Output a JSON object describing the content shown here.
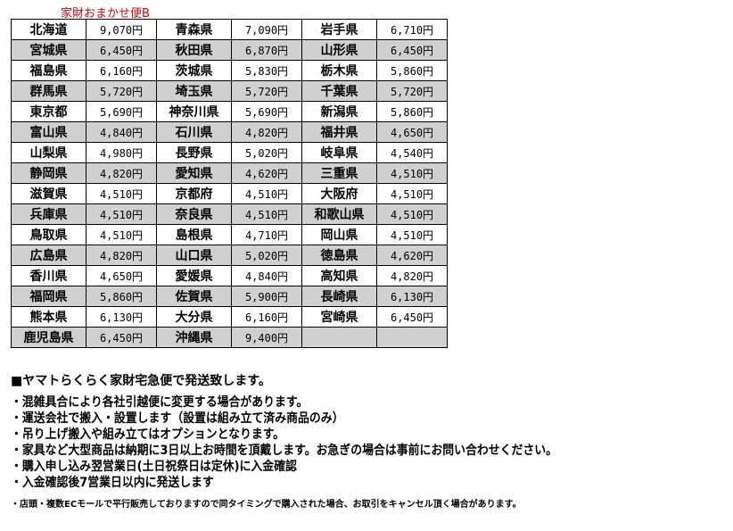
{
  "title": "家財おまかせ便B",
  "rows": [
    [
      [
        "北海道",
        "9,070円"
      ],
      [
        "青森県",
        "7,090円"
      ],
      [
        "岩手県",
        "6,710円"
      ]
    ],
    [
      [
        "宮城県",
        "6,450円"
      ],
      [
        "秋田県",
        "6,870円"
      ],
      [
        "山形県",
        "6,450円"
      ]
    ],
    [
      [
        "福島県",
        "6,160円"
      ],
      [
        "茨城県",
        "5,830円"
      ],
      [
        "栃木県",
        "5,860円"
      ]
    ],
    [
      [
        "群馬県",
        "5,720円"
      ],
      [
        "埼玉県",
        "5,720円"
      ],
      [
        "千葉県",
        "5,720円"
      ]
    ],
    [
      [
        "東京都",
        "5,690円"
      ],
      [
        "神奈川県",
        "5,690円"
      ],
      [
        "新潟県",
        "5,860円"
      ]
    ],
    [
      [
        "富山県",
        "4,840円"
      ],
      [
        "石川県",
        "4,820円"
      ],
      [
        "福井県",
        "4,650円"
      ]
    ],
    [
      [
        "山梨県",
        "4,980円"
      ],
      [
        "長野県",
        "5,020円"
      ],
      [
        "岐阜県",
        "4,540円"
      ]
    ],
    [
      [
        "静岡県",
        "4,820円"
      ],
      [
        "愛知県",
        "4,620円"
      ],
      [
        "三重県",
        "4,510円"
      ]
    ],
    [
      [
        "滋賀県",
        "4,510円"
      ],
      [
        "京都府",
        "4,510円"
      ],
      [
        "大阪府",
        "4,510円"
      ]
    ],
    [
      [
        "兵庫県",
        "4,510円"
      ],
      [
        "奈良県",
        "4,510円"
      ],
      [
        "和歌山県",
        "4,510円"
      ]
    ],
    [
      [
        "鳥取県",
        "4,510円"
      ],
      [
        "島根県",
        "4,710円"
      ],
      [
        "岡山県",
        "4,510円"
      ]
    ],
    [
      [
        "広島県",
        "4,820円"
      ],
      [
        "山口県",
        "5,020円"
      ],
      [
        "徳島県",
        "4,620円"
      ]
    ],
    [
      [
        "香川県",
        "4,650円"
      ],
      [
        "愛媛県",
        "4,840円"
      ],
      [
        "高知県",
        "4,820円"
      ]
    ],
    [
      [
        "福岡県",
        "5,860円"
      ],
      [
        "佐賀県",
        "5,900円"
      ],
      [
        "長崎県",
        "6,130円"
      ]
    ],
    [
      [
        "熊本県",
        "6,130円"
      ],
      [
        "大分県",
        "6,160円"
      ],
      [
        "宮崎県",
        "6,450円"
      ]
    ],
    [
      [
        "鹿児島県",
        "6,450円"
      ],
      [
        "沖縄県",
        "9,400円"
      ],
      [
        "",
        ""
      ]
    ]
  ],
  "notes": {
    "heading": "■ヤマトらくらく家財宅急便で発送致します。",
    "bullets": [
      "・混雑具合により各社引越便に変更する場合があります。",
      "・運送会社で搬入・設置します（設置は組み立て済み商品のみ）",
      "・吊り上げ搬入や組み立てはオプションとなります。",
      "・家具など大型商品は納期に3日以上お時間を頂戴します。お急ぎの場合は事前にお問い合わせください。",
      "・購入申し込み翌営業日(土日祝祭日は定休)に入金確認",
      "・入金確認後7営業日以内に発送します"
    ],
    "small": "・店頭・複数ECモールで平行販売しておりますので同タイミングで購入された場合、お取引をキャンセル頂く場合があります。"
  },
  "colors": {
    "title": "#e00000",
    "alt_row": "#d0d0d0"
  }
}
